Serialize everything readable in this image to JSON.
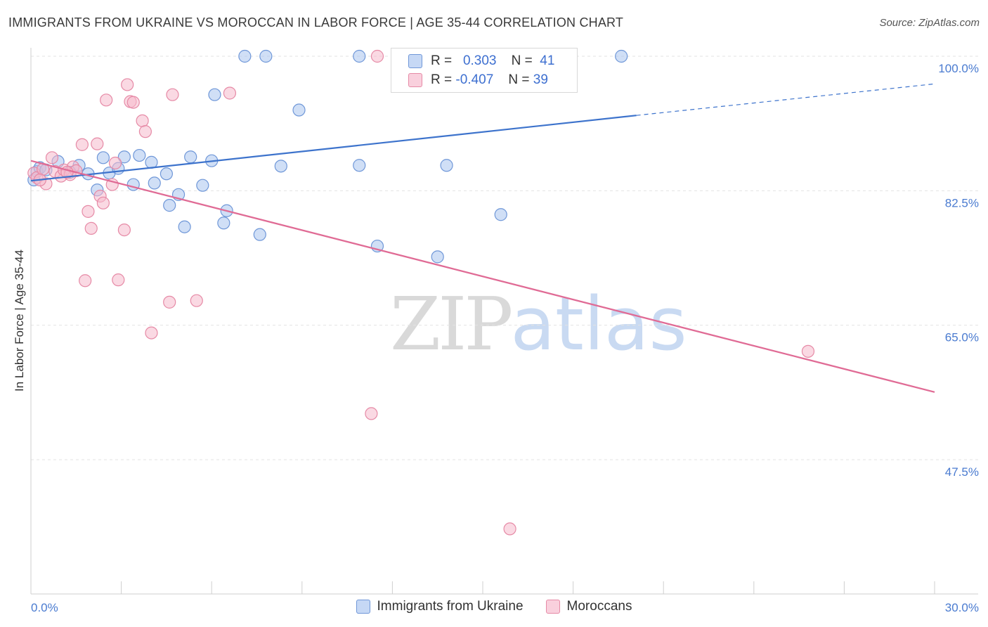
{
  "header": {
    "title": "IMMIGRANTS FROM UKRAINE VS MOROCCAN IN LABOR FORCE | AGE 35-44 CORRELATION CHART",
    "source": "Source: ZipAtlas.com"
  },
  "watermark": {
    "zip": "ZIP",
    "atlas": "atlas"
  },
  "legend": {
    "rows": [
      {
        "r_label": "R =",
        "r_value": "0.303",
        "n_label": "N =",
        "n_value": "41"
      },
      {
        "r_label": "R =",
        "r_value": "-0.407",
        "n_label": "N =",
        "n_value": "39"
      }
    ]
  },
  "colors": {
    "ukraine_fill": "#aac4ee",
    "ukraine_stroke": "#6f97d8",
    "ukraine_line": "#3d73cc",
    "moroccan_fill": "#f5b9cc",
    "moroccan_stroke": "#e68aa6",
    "moroccan_line": "#e06b95",
    "tick_text": "#4a7bd0",
    "grid": "#e3e3e3"
  },
  "chart_data": {
    "type": "scatter",
    "ylabel": "In Labor Force | Age 35-44",
    "xlim": [
      0,
      30
    ],
    "ylim": [
      30,
      101.5
    ],
    "x_tick_labels": [
      "0.0%",
      "30.0%"
    ],
    "y_ticks": [
      {
        "value": 100,
        "label": "100.0%"
      },
      {
        "value": 82.5,
        "label": "82.5%"
      },
      {
        "value": 65,
        "label": "65.0%"
      },
      {
        "value": 47.5,
        "label": "47.5%"
      }
    ],
    "grid": true,
    "series": [
      {
        "name": "Immigrants from Ukraine",
        "points": [
          [
            0.1,
            83.9
          ],
          [
            0.2,
            85.0
          ],
          [
            0.3,
            85.5
          ],
          [
            0.5,
            85.2
          ],
          [
            0.9,
            86.3
          ],
          [
            1.3,
            84.9
          ],
          [
            1.6,
            85.8
          ],
          [
            1.9,
            84.7
          ],
          [
            2.2,
            82.6
          ],
          [
            2.4,
            86.8
          ],
          [
            2.6,
            84.8
          ],
          [
            2.9,
            85.4
          ],
          [
            3.1,
            86.9
          ],
          [
            3.4,
            83.3
          ],
          [
            3.6,
            87.1
          ],
          [
            4.0,
            86.2
          ],
          [
            4.1,
            83.5
          ],
          [
            4.5,
            84.7
          ],
          [
            4.6,
            80.6
          ],
          [
            4.9,
            82.0
          ],
          [
            5.1,
            77.8
          ],
          [
            5.3,
            86.9
          ],
          [
            5.7,
            83.2
          ],
          [
            6.0,
            86.4
          ],
          [
            6.1,
            95.0
          ],
          [
            6.4,
            78.3
          ],
          [
            6.5,
            79.9
          ],
          [
            7.1,
            100.0
          ],
          [
            7.6,
            76.8
          ],
          [
            7.8,
            100.0
          ],
          [
            8.3,
            85.7
          ],
          [
            8.9,
            93.0
          ],
          [
            10.9,
            100.0
          ],
          [
            10.9,
            85.8
          ],
          [
            11.5,
            75.3
          ],
          [
            14.0,
            100.0
          ],
          [
            13.5,
            73.9
          ],
          [
            13.8,
            85.8
          ],
          [
            14.9,
            100.0
          ],
          [
            15.6,
            79.4
          ],
          [
            19.6,
            100.0
          ]
        ],
        "trend": {
          "x0": 0,
          "y0": 83.8,
          "x1": 20.1,
          "y1": 92.3,
          "dash_x1": 30,
          "dash_y1": 96.4
        }
      },
      {
        "name": "Moroccans",
        "points": [
          [
            0.1,
            84.8
          ],
          [
            0.2,
            84.2
          ],
          [
            0.4,
            85.3
          ],
          [
            0.5,
            83.4
          ],
          [
            0.7,
            86.8
          ],
          [
            0.8,
            85.0
          ],
          [
            1.0,
            84.4
          ],
          [
            1.1,
            85.2
          ],
          [
            1.3,
            84.6
          ],
          [
            1.4,
            85.6
          ],
          [
            1.5,
            85.1
          ],
          [
            1.7,
            88.5
          ],
          [
            1.8,
            70.8
          ],
          [
            1.9,
            79.8
          ],
          [
            2.0,
            77.6
          ],
          [
            2.2,
            88.6
          ],
          [
            2.3,
            81.8
          ],
          [
            2.4,
            80.9
          ],
          [
            2.5,
            94.3
          ],
          [
            2.7,
            83.3
          ],
          [
            2.8,
            86.1
          ],
          [
            2.9,
            70.9
          ],
          [
            3.1,
            77.4
          ],
          [
            3.2,
            96.3
          ],
          [
            3.3,
            94.1
          ],
          [
            3.4,
            94.0
          ],
          [
            3.7,
            91.6
          ],
          [
            3.8,
            90.2
          ],
          [
            4.0,
            64.0
          ],
          [
            4.6,
            68.0
          ],
          [
            4.7,
            95.0
          ],
          [
            5.5,
            68.2
          ],
          [
            6.6,
            95.2
          ],
          [
            11.3,
            53.5
          ],
          [
            11.5,
            100.0
          ],
          [
            15.9,
            38.5
          ],
          [
            25.8,
            61.6
          ],
          [
            0.3,
            83.9
          ],
          [
            1.2,
            84.9
          ]
        ],
        "trend": {
          "x0": 0,
          "y0": 86.4,
          "x1": 30,
          "y1": 56.3
        }
      }
    ]
  }
}
